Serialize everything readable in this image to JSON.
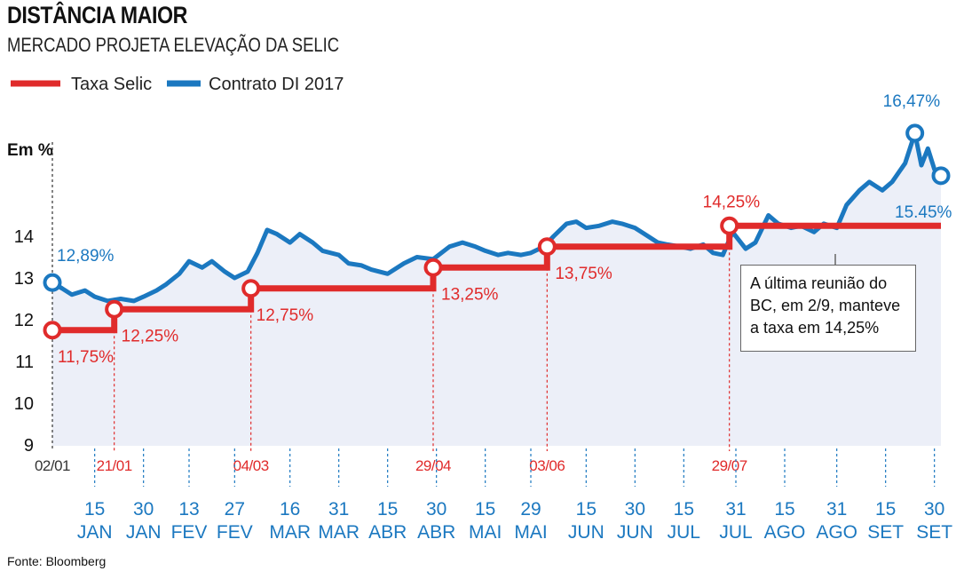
{
  "title": "DISTÂNCIA MAIOR",
  "subtitle": "MERCADO PROJETA ELEVAÇÃO DA SELIC",
  "source": "Fonte: Bloomberg",
  "callout": "A última reunião do BC, em 2/9, manteve a taxa em 14,25%",
  "colors": {
    "selic": "#e02b2b",
    "di": "#1b78c0",
    "area": "#eceff8",
    "tick_blue": "#1b78c0",
    "tick_red": "#e02b2b"
  },
  "chart_data": {
    "type": "line",
    "title": "DISTÂNCIA MAIOR",
    "subtitle": "MERCADO PROJETA ELEVAÇÃO DA SELIC",
    "ylabel": "Em %",
    "ylim": [
      9,
      17
    ],
    "yticks": [
      9,
      10,
      11,
      12,
      13,
      14
    ],
    "xlim": [
      "2015-01-02",
      "2015-10-02"
    ],
    "legend": [
      "Taxa Selic",
      "Contrato DI 2017"
    ],
    "legend_position": "top-left",
    "grid": false,
    "meeting_labels": [
      {
        "date": "2015-01-02",
        "label": "02/01",
        "color": "black"
      },
      {
        "date": "2015-01-21",
        "label": "21/01",
        "color": "red"
      },
      {
        "date": "2015-03-04",
        "label": "04/03",
        "color": "red"
      },
      {
        "date": "2015-04-29",
        "label": "29/04",
        "color": "red"
      },
      {
        "date": "2015-06-03",
        "label": "03/06",
        "color": "red"
      },
      {
        "date": "2015-07-29",
        "label": "29/07",
        "color": "red"
      }
    ],
    "x_ticks": [
      {
        "date": "2015-01-15",
        "day": "15",
        "month": "JAN"
      },
      {
        "date": "2015-01-30",
        "day": "30",
        "month": "JAN"
      },
      {
        "date": "2015-02-13",
        "day": "13",
        "month": "FEV"
      },
      {
        "date": "2015-02-27",
        "day": "27",
        "month": "FEV"
      },
      {
        "date": "2015-03-16",
        "day": "16",
        "month": "MAR"
      },
      {
        "date": "2015-03-31",
        "day": "31",
        "month": "MAR"
      },
      {
        "date": "2015-04-15",
        "day": "15",
        "month": "ABR"
      },
      {
        "date": "2015-04-30",
        "day": "30",
        "month": "ABR"
      },
      {
        "date": "2015-05-15",
        "day": "15",
        "month": "MAI"
      },
      {
        "date": "2015-05-29",
        "day": "29",
        "month": "MAI"
      },
      {
        "date": "2015-06-15",
        "day": "15",
        "month": "JUN"
      },
      {
        "date": "2015-06-30",
        "day": "30",
        "month": "JUN"
      },
      {
        "date": "2015-07-15",
        "day": "15",
        "month": "JUL"
      },
      {
        "date": "2015-07-31",
        "day": "31",
        "month": "JUL"
      },
      {
        "date": "2015-08-15",
        "day": "15",
        "month": "AGO"
      },
      {
        "date": "2015-08-31",
        "day": "31",
        "month": "AGO"
      },
      {
        "date": "2015-09-15",
        "day": "15",
        "month": "SET"
      },
      {
        "date": "2015-09-30",
        "day": "30",
        "month": "SET"
      }
    ],
    "series": [
      {
        "name": "Taxa Selic",
        "type": "step",
        "points": [
          {
            "x": "2015-01-02",
            "y": 11.75
          },
          {
            "x": "2015-01-21",
            "y": 12.25
          },
          {
            "x": "2015-03-04",
            "y": 12.75
          },
          {
            "x": "2015-04-29",
            "y": 13.25
          },
          {
            "x": "2015-06-03",
            "y": 13.75
          },
          {
            "x": "2015-07-29",
            "y": 14.25
          },
          {
            "x": "2015-10-02",
            "y": 14.25
          }
        ],
        "labels": [
          {
            "x": "2015-01-02",
            "y": 11.75,
            "text": "11,75%"
          },
          {
            "x": "2015-01-21",
            "y": 12.25,
            "text": "12,25%"
          },
          {
            "x": "2015-03-04",
            "y": 12.75,
            "text": "12,75%"
          },
          {
            "x": "2015-04-29",
            "y": 13.25,
            "text": "13,25%"
          },
          {
            "x": "2015-06-03",
            "y": 13.75,
            "text": "13,75%"
          },
          {
            "x": "2015-07-29",
            "y": 14.25,
            "text": "14,25%"
          }
        ]
      },
      {
        "name": "Contrato DI 2017",
        "type": "line",
        "points": [
          {
            "x": "2015-01-02",
            "y": 12.89
          },
          {
            "x": "2015-01-05",
            "y": 12.75
          },
          {
            "x": "2015-01-08",
            "y": 12.6
          },
          {
            "x": "2015-01-12",
            "y": 12.7
          },
          {
            "x": "2015-01-15",
            "y": 12.55
          },
          {
            "x": "2015-01-19",
            "y": 12.45
          },
          {
            "x": "2015-01-23",
            "y": 12.5
          },
          {
            "x": "2015-01-27",
            "y": 12.45
          },
          {
            "x": "2015-01-30",
            "y": 12.55
          },
          {
            "x": "2015-02-03",
            "y": 12.7
          },
          {
            "x": "2015-02-06",
            "y": 12.85
          },
          {
            "x": "2015-02-10",
            "y": 13.1
          },
          {
            "x": "2015-02-13",
            "y": 13.4
          },
          {
            "x": "2015-02-17",
            "y": 13.25
          },
          {
            "x": "2015-02-20",
            "y": 13.4
          },
          {
            "x": "2015-02-24",
            "y": 13.15
          },
          {
            "x": "2015-02-27",
            "y": 13.0
          },
          {
            "x": "2015-03-03",
            "y": 13.15
          },
          {
            "x": "2015-03-06",
            "y": 13.6
          },
          {
            "x": "2015-03-09",
            "y": 14.15
          },
          {
            "x": "2015-03-12",
            "y": 14.05
          },
          {
            "x": "2015-03-16",
            "y": 13.85
          },
          {
            "x": "2015-03-19",
            "y": 14.05
          },
          {
            "x": "2015-03-23",
            "y": 13.85
          },
          {
            "x": "2015-03-26",
            "y": 13.65
          },
          {
            "x": "2015-03-31",
            "y": 13.55
          },
          {
            "x": "2015-04-03",
            "y": 13.35
          },
          {
            "x": "2015-04-07",
            "y": 13.3
          },
          {
            "x": "2015-04-10",
            "y": 13.2
          },
          {
            "x": "2015-04-15",
            "y": 13.1
          },
          {
            "x": "2015-04-20",
            "y": 13.35
          },
          {
            "x": "2015-04-24",
            "y": 13.5
          },
          {
            "x": "2015-04-29",
            "y": 13.45
          },
          {
            "x": "2015-05-04",
            "y": 13.75
          },
          {
            "x": "2015-05-08",
            "y": 13.85
          },
          {
            "x": "2015-05-12",
            "y": 13.75
          },
          {
            "x": "2015-05-15",
            "y": 13.65
          },
          {
            "x": "2015-05-19",
            "y": 13.55
          },
          {
            "x": "2015-05-22",
            "y": 13.6
          },
          {
            "x": "2015-05-26",
            "y": 13.55
          },
          {
            "x": "2015-05-29",
            "y": 13.6
          },
          {
            "x": "2015-06-02",
            "y": 13.75
          },
          {
            "x": "2015-06-05",
            "y": 14.0
          },
          {
            "x": "2015-06-09",
            "y": 14.3
          },
          {
            "x": "2015-06-12",
            "y": 14.35
          },
          {
            "x": "2015-06-15",
            "y": 14.2
          },
          {
            "x": "2015-06-19",
            "y": 14.25
          },
          {
            "x": "2015-06-23",
            "y": 14.35
          },
          {
            "x": "2015-06-26",
            "y": 14.3
          },
          {
            "x": "2015-06-30",
            "y": 14.2
          },
          {
            "x": "2015-07-03",
            "y": 14.05
          },
          {
            "x": "2015-07-07",
            "y": 13.85
          },
          {
            "x": "2015-07-10",
            "y": 13.8
          },
          {
            "x": "2015-07-14",
            "y": 13.75
          },
          {
            "x": "2015-07-17",
            "y": 13.7
          },
          {
            "x": "2015-07-21",
            "y": 13.8
          },
          {
            "x": "2015-07-24",
            "y": 13.6
          },
          {
            "x": "2015-07-27",
            "y": 13.55
          },
          {
            "x": "2015-07-30",
            "y": 14.1
          },
          {
            "x": "2015-08-03",
            "y": 13.7
          },
          {
            "x": "2015-08-06",
            "y": 13.85
          },
          {
            "x": "2015-08-10",
            "y": 14.5
          },
          {
            "x": "2015-08-13",
            "y": 14.3
          },
          {
            "x": "2015-08-17",
            "y": 14.2
          },
          {
            "x": "2015-08-20",
            "y": 14.25
          },
          {
            "x": "2015-08-24",
            "y": 14.1
          },
          {
            "x": "2015-08-27",
            "y": 14.3
          },
          {
            "x": "2015-08-31",
            "y": 14.2
          },
          {
            "x": "2015-09-03",
            "y": 14.75
          },
          {
            "x": "2015-09-07",
            "y": 15.1
          },
          {
            "x": "2015-09-10",
            "y": 15.3
          },
          {
            "x": "2015-09-14",
            "y": 15.1
          },
          {
            "x": "2015-09-17",
            "y": 15.3
          },
          {
            "x": "2015-09-21",
            "y": 15.75
          },
          {
            "x": "2015-09-24",
            "y": 16.47
          },
          {
            "x": "2015-09-26",
            "y": 15.7
          },
          {
            "x": "2015-09-28",
            "y": 16.1
          },
          {
            "x": "2015-09-30",
            "y": 15.6
          },
          {
            "x": "2015-10-02",
            "y": 15.45
          }
        ],
        "labels": [
          {
            "x": "2015-01-02",
            "y": 12.89,
            "text": "12,89%"
          },
          {
            "x": "2015-09-24",
            "y": 16.47,
            "text": "16,47%"
          },
          {
            "x": "2015-10-02",
            "y": 15.45,
            "text": "15.45%"
          }
        ]
      }
    ]
  }
}
